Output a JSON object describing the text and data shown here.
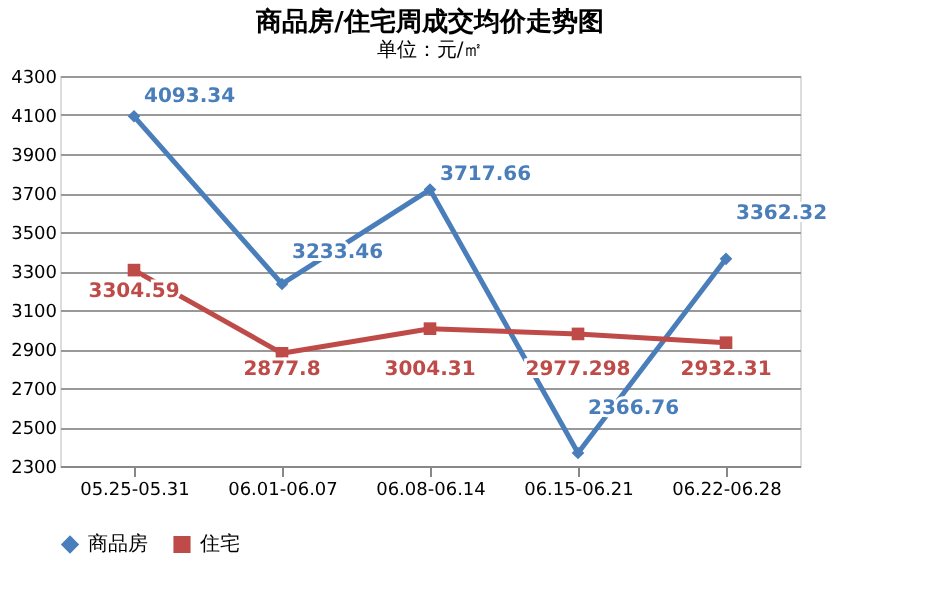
{
  "chart_data": {
    "type": "line",
    "title": "商品房/住宅周成交均价走势图",
    "subtitle": "单位：元/㎡",
    "categories": [
      "05.25-05.31",
      "06.01-06.07",
      "06.08-06.14",
      "06.15-06.21",
      "06.22-06.28"
    ],
    "series": [
      {
        "name": "商品房",
        "color": "#4a7ebb",
        "marker": "diamond",
        "values": [
          4093.34,
          3233.46,
          3717.66,
          2366.76,
          3362.32
        ]
      },
      {
        "name": "住宅",
        "color": "#be4b48",
        "marker": "square",
        "values": [
          3304.59,
          2877.8,
          3004.31,
          2977.298,
          2932.31
        ]
      }
    ],
    "ylim": [
      2300,
      4300
    ],
    "yticks": [
      2300,
      2500,
      2700,
      2900,
      3100,
      3300,
      3500,
      3700,
      3900,
      4100,
      4300
    ],
    "grid": "y",
    "legend": "bottom",
    "data_labels": true,
    "line_style": "solid"
  }
}
